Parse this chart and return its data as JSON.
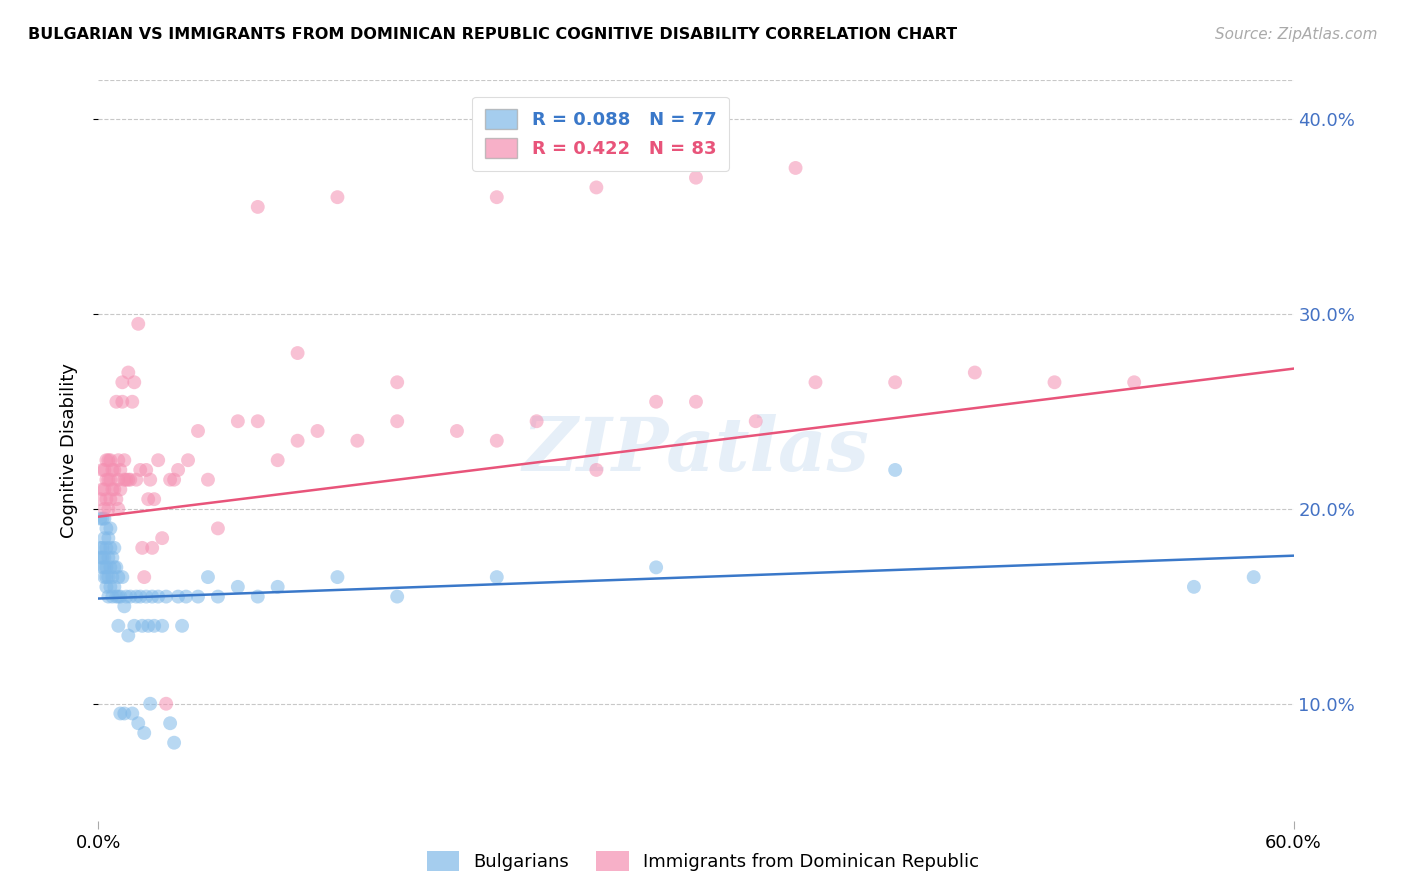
{
  "title": "BULGARIAN VS IMMIGRANTS FROM DOMINICAN REPUBLIC COGNITIVE DISABILITY CORRELATION CHART",
  "source": "Source: ZipAtlas.com",
  "ylabel": "Cognitive Disability",
  "xmin": 0.0,
  "xmax": 0.6,
  "ymin": 0.04,
  "ymax": 0.42,
  "blue_R": 0.088,
  "blue_N": 77,
  "pink_R": 0.422,
  "pink_N": 83,
  "blue_color": "#7fb8e8",
  "pink_color": "#f48fb1",
  "blue_line_color": "#3a78c9",
  "pink_line_color": "#e8547a",
  "legend_blue_label": "R = 0.088   N = 77",
  "legend_pink_label": "R = 0.422   N = 83",
  "bottom_legend_blue": "Bulgarians",
  "bottom_legend_pink": "Immigrants from Dominican Republic",
  "watermark": "ZIPatlas",
  "ytick_vals": [
    0.1,
    0.2,
    0.3,
    0.4
  ],
  "ytick_labels": [
    "10.0%",
    "20.0%",
    "30.0%",
    "40.0%"
  ],
  "blue_x": [
    0.001,
    0.001,
    0.001,
    0.002,
    0.002,
    0.002,
    0.002,
    0.003,
    0.003,
    0.003,
    0.003,
    0.003,
    0.004,
    0.004,
    0.004,
    0.004,
    0.004,
    0.005,
    0.005,
    0.005,
    0.005,
    0.006,
    0.006,
    0.006,
    0.006,
    0.007,
    0.007,
    0.007,
    0.008,
    0.008,
    0.008,
    0.009,
    0.009,
    0.01,
    0.01,
    0.01,
    0.011,
    0.011,
    0.012,
    0.013,
    0.013,
    0.014,
    0.015,
    0.016,
    0.017,
    0.018,
    0.019,
    0.02,
    0.021,
    0.022,
    0.023,
    0.024,
    0.025,
    0.026,
    0.027,
    0.028,
    0.03,
    0.032,
    0.034,
    0.036,
    0.038,
    0.04,
    0.042,
    0.044,
    0.05,
    0.055,
    0.06,
    0.07,
    0.08,
    0.09,
    0.12,
    0.15,
    0.2,
    0.28,
    0.4,
    0.55,
    0.58
  ],
  "blue_y": [
    0.175,
    0.18,
    0.195,
    0.17,
    0.175,
    0.18,
    0.195,
    0.165,
    0.17,
    0.175,
    0.185,
    0.195,
    0.16,
    0.165,
    0.17,
    0.18,
    0.19,
    0.155,
    0.165,
    0.175,
    0.185,
    0.16,
    0.17,
    0.18,
    0.19,
    0.155,
    0.165,
    0.175,
    0.16,
    0.17,
    0.18,
    0.155,
    0.17,
    0.14,
    0.155,
    0.165,
    0.095,
    0.155,
    0.165,
    0.15,
    0.095,
    0.155,
    0.135,
    0.155,
    0.095,
    0.14,
    0.155,
    0.09,
    0.155,
    0.14,
    0.085,
    0.155,
    0.14,
    0.1,
    0.155,
    0.14,
    0.155,
    0.14,
    0.155,
    0.09,
    0.08,
    0.155,
    0.14,
    0.155,
    0.155,
    0.165,
    0.155,
    0.16,
    0.155,
    0.16,
    0.165,
    0.155,
    0.165,
    0.17,
    0.22,
    0.16,
    0.165
  ],
  "pink_x": [
    0.001,
    0.002,
    0.002,
    0.003,
    0.003,
    0.003,
    0.004,
    0.004,
    0.004,
    0.005,
    0.005,
    0.005,
    0.006,
    0.006,
    0.006,
    0.007,
    0.007,
    0.008,
    0.008,
    0.009,
    0.009,
    0.01,
    0.01,
    0.01,
    0.011,
    0.011,
    0.012,
    0.012,
    0.013,
    0.013,
    0.014,
    0.015,
    0.015,
    0.016,
    0.017,
    0.018,
    0.019,
    0.02,
    0.021,
    0.022,
    0.023,
    0.024,
    0.025,
    0.026,
    0.027,
    0.028,
    0.03,
    0.032,
    0.034,
    0.036,
    0.038,
    0.04,
    0.045,
    0.05,
    0.055,
    0.06,
    0.07,
    0.08,
    0.09,
    0.1,
    0.11,
    0.13,
    0.15,
    0.18,
    0.2,
    0.22,
    0.25,
    0.28,
    0.3,
    0.33,
    0.36,
    0.4,
    0.44,
    0.48,
    0.52,
    0.15,
    0.1,
    0.08,
    0.12,
    0.2,
    0.25,
    0.3,
    0.35
  ],
  "pink_y": [
    0.205,
    0.21,
    0.22,
    0.2,
    0.21,
    0.22,
    0.205,
    0.215,
    0.225,
    0.2,
    0.215,
    0.225,
    0.205,
    0.215,
    0.225,
    0.21,
    0.22,
    0.21,
    0.22,
    0.205,
    0.255,
    0.2,
    0.215,
    0.225,
    0.21,
    0.22,
    0.255,
    0.265,
    0.215,
    0.225,
    0.215,
    0.215,
    0.27,
    0.215,
    0.255,
    0.265,
    0.215,
    0.295,
    0.22,
    0.18,
    0.165,
    0.22,
    0.205,
    0.215,
    0.18,
    0.205,
    0.225,
    0.185,
    0.1,
    0.215,
    0.215,
    0.22,
    0.225,
    0.24,
    0.215,
    0.19,
    0.245,
    0.245,
    0.225,
    0.235,
    0.24,
    0.235,
    0.245,
    0.24,
    0.235,
    0.245,
    0.22,
    0.255,
    0.255,
    0.245,
    0.265,
    0.265,
    0.27,
    0.265,
    0.265,
    0.265,
    0.28,
    0.355,
    0.36,
    0.36,
    0.365,
    0.37,
    0.375
  ]
}
